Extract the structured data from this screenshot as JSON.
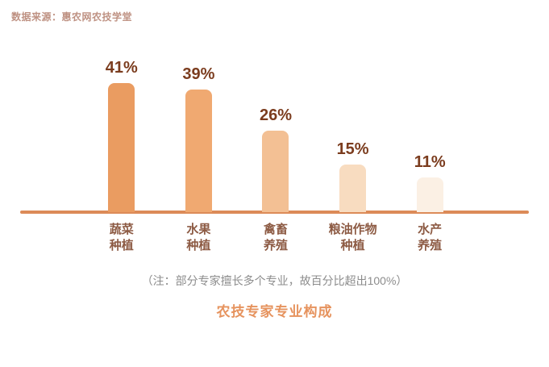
{
  "source_label": "数据来源：惠农网农技学堂",
  "chart_data": {
    "type": "bar",
    "title": "农技专家专业构成",
    "note": "（注：部分专家擅长多个专业，故百分比超出100%）",
    "categories": [
      "蔬菜\n种植",
      "水果\n种植",
      "禽畜\n养殖",
      "粮油作物\n种植",
      "水产\n养殖"
    ],
    "values": [
      41,
      39,
      26,
      15,
      11
    ],
    "value_labels": [
      "41%",
      "39%",
      "26%",
      "15%",
      "11%"
    ],
    "bar_colors": [
      "#EA9C61",
      "#F0A971",
      "#F3C094",
      "#F8DCC0",
      "#FBF0E4"
    ],
    "ylim": [
      0,
      45
    ],
    "grid": false,
    "legend": "none",
    "xlabel": "",
    "ylabel": ""
  },
  "colors": {
    "value_label": "#7B3C1E",
    "category_label": "#8D5B44",
    "baseline": "#DC8B58",
    "title": "#E6935E",
    "source": "#BE9182",
    "note": "#8C8C8C",
    "background": "#FFFFFF"
  }
}
